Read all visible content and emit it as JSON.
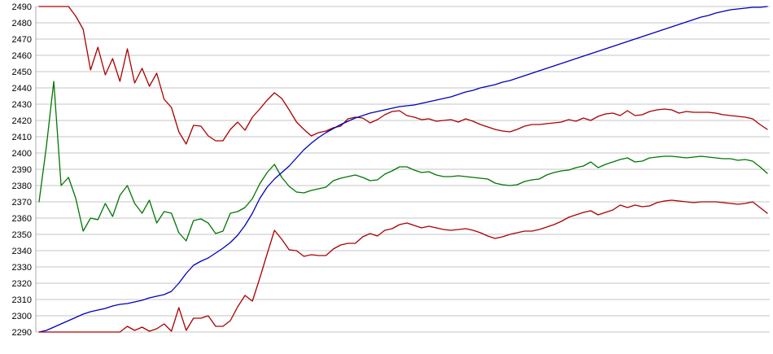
{
  "chart_data": {
    "type": "line",
    "title": "",
    "xlabel": "",
    "ylabel": "",
    "grid": "horizontal",
    "legend": "none",
    "x_axis_labels_visible": false,
    "ylim": [
      2290,
      2490
    ],
    "ytick_step": 10,
    "y_ticks": [
      2490,
      2480,
      2470,
      2460,
      2450,
      2440,
      2430,
      2420,
      2410,
      2400,
      2390,
      2380,
      2370,
      2360,
      2350,
      2340,
      2330,
      2320,
      2310,
      2300,
      2290
    ],
    "colors": {
      "red": "#aa0000",
      "green": "#007700",
      "blue": "#0000bb",
      "gridline": "#c6c6c6",
      "axis": "#a8a8a8",
      "tick_label": "#000000"
    },
    "series": [
      {
        "name": "upper-red",
        "color_key": "red",
        "values": [
          2490,
          2490,
          2490,
          2490,
          2490,
          2484,
          2476,
          2451,
          2465,
          2448,
          2458,
          2444,
          2464,
          2443,
          2452,
          2441,
          2449,
          2433,
          2428,
          2413,
          2405.5,
          2417,
          2416.5,
          2410.5,
          2407.5,
          2407.5,
          2414.5,
          2419,
          2414,
          2422,
          2427,
          2432.5,
          2437,
          2433.5,
          2426.5,
          2419,
          2414.5,
          2410.5,
          2412.5,
          2413.5,
          2415.5,
          2416.5,
          2421,
          2422,
          2421.5,
          2418.5,
          2420.5,
          2423.5,
          2425.5,
          2426,
          2423,
          2422,
          2420.5,
          2421,
          2419.5,
          2420,
          2420.5,
          2419,
          2421,
          2419.5,
          2417.5,
          2416,
          2414.5,
          2413.5,
          2413,
          2414.5,
          2416.5,
          2417.5,
          2417.5,
          2418,
          2418.5,
          2419,
          2420.5,
          2419.5,
          2421.5,
          2420,
          2422.5,
          2424,
          2424.5,
          2423,
          2426,
          2423,
          2423.5,
          2425.5,
          2426.5,
          2427,
          2426.5,
          2424.5,
          2425.5,
          2425,
          2425,
          2425,
          2424.5,
          2423.5,
          2423,
          2422.5,
          2422,
          2421,
          2417.5,
          2414.5
        ]
      },
      {
        "name": "green",
        "color_key": "green",
        "values": [
          2370,
          2404,
          2444,
          2380,
          2385,
          2372,
          2352,
          2360,
          2359,
          2369,
          2361,
          2374,
          2380,
          2369,
          2363,
          2371,
          2357,
          2364,
          2363,
          2351,
          2346,
          2358.5,
          2359.5,
          2357,
          2350.5,
          2352,
          2363,
          2364,
          2366.5,
          2372,
          2381,
          2388,
          2393,
          2385,
          2379.5,
          2376,
          2375.5,
          2377,
          2378,
          2379,
          2383,
          2384.5,
          2385.5,
          2386.5,
          2385,
          2383,
          2383.5,
          2387,
          2389,
          2391.5,
          2391.5,
          2389.5,
          2388,
          2388.5,
          2386.5,
          2385.5,
          2385.5,
          2386,
          2385.5,
          2385,
          2384.5,
          2384,
          2381.5,
          2380.5,
          2380,
          2380.5,
          2382.5,
          2383.5,
          2384,
          2386.5,
          2388,
          2389,
          2389.5,
          2391,
          2392,
          2394.5,
          2391,
          2393,
          2394.5,
          2396,
          2397,
          2394.5,
          2395,
          2397,
          2397.5,
          2398,
          2398,
          2397.5,
          2397,
          2397.5,
          2398,
          2397.5,
          2397,
          2396.5,
          2396.5,
          2395.5,
          2396,
          2395,
          2391.5,
          2387.5
        ]
      },
      {
        "name": "blue",
        "color_key": "blue",
        "values": [
          2290,
          2291,
          2293,
          2295,
          2297,
          2299,
          2301,
          2302.5,
          2303.5,
          2304.5,
          2306,
          2307,
          2307.5,
          2308.5,
          2309.5,
          2311,
          2312,
          2313,
          2315,
          2320,
          2326,
          2331,
          2333.5,
          2335.5,
          2338.5,
          2341.5,
          2345,
          2349.5,
          2355.5,
          2363,
          2372,
          2379,
          2384,
          2388,
          2392,
          2397,
          2402,
          2406,
          2409.5,
          2412.5,
          2415,
          2417.5,
          2419.5,
          2421.5,
          2423,
          2424.5,
          2425.5,
          2426.5,
          2427.5,
          2428.5,
          2429,
          2429.5,
          2430.5,
          2431.5,
          2432.5,
          2433.5,
          2434.5,
          2436,
          2437.5,
          2438.5,
          2440,
          2441,
          2442,
          2443.5,
          2444.5,
          2446,
          2447.5,
          2449,
          2450.5,
          2452,
          2453.5,
          2455,
          2456.5,
          2458,
          2459.5,
          2461,
          2462.5,
          2464,
          2465.5,
          2467,
          2468.5,
          2470,
          2471.5,
          2473,
          2474.5,
          2476,
          2477.5,
          2479,
          2480.5,
          2482,
          2483.5,
          2484.5,
          2486,
          2487,
          2488,
          2488.5,
          2489,
          2489.5,
          2489.5,
          2490
        ]
      },
      {
        "name": "lower-red",
        "color_key": "red",
        "values": [
          2290,
          2290,
          2290,
          2290,
          2290,
          2290,
          2290,
          2290,
          2290,
          2290,
          2290,
          2290,
          2293.5,
          2291,
          2293,
          2290.5,
          2292,
          2295,
          2290.5,
          2305,
          2291,
          2298.5,
          2298.5,
          2300,
          2293.5,
          2293.5,
          2297,
          2305.5,
          2312.5,
          2309,
          2323,
          2338,
          2352.5,
          2347,
          2340.5,
          2340,
          2336.5,
          2337.5,
          2337,
          2337,
          2341,
          2343.5,
          2344.5,
          2344.5,
          2348.5,
          2350.5,
          2349,
          2352.5,
          2353.5,
          2356,
          2357,
          2355.5,
          2354,
          2355,
          2354,
          2353,
          2352.5,
          2353,
          2353.5,
          2352.5,
          2351,
          2349,
          2347.5,
          2348.5,
          2350,
          2351,
          2352,
          2352,
          2353,
          2354.5,
          2356,
          2358,
          2360.5,
          2362,
          2363.5,
          2364.5,
          2362,
          2363.5,
          2365,
          2368,
          2366.5,
          2368,
          2367,
          2367.5,
          2369.5,
          2370.5,
          2371,
          2370.5,
          2370,
          2369.5,
          2370,
          2370,
          2370,
          2369.5,
          2369,
          2368.5,
          2369,
          2370,
          2366.5,
          2363
        ]
      }
    ]
  }
}
